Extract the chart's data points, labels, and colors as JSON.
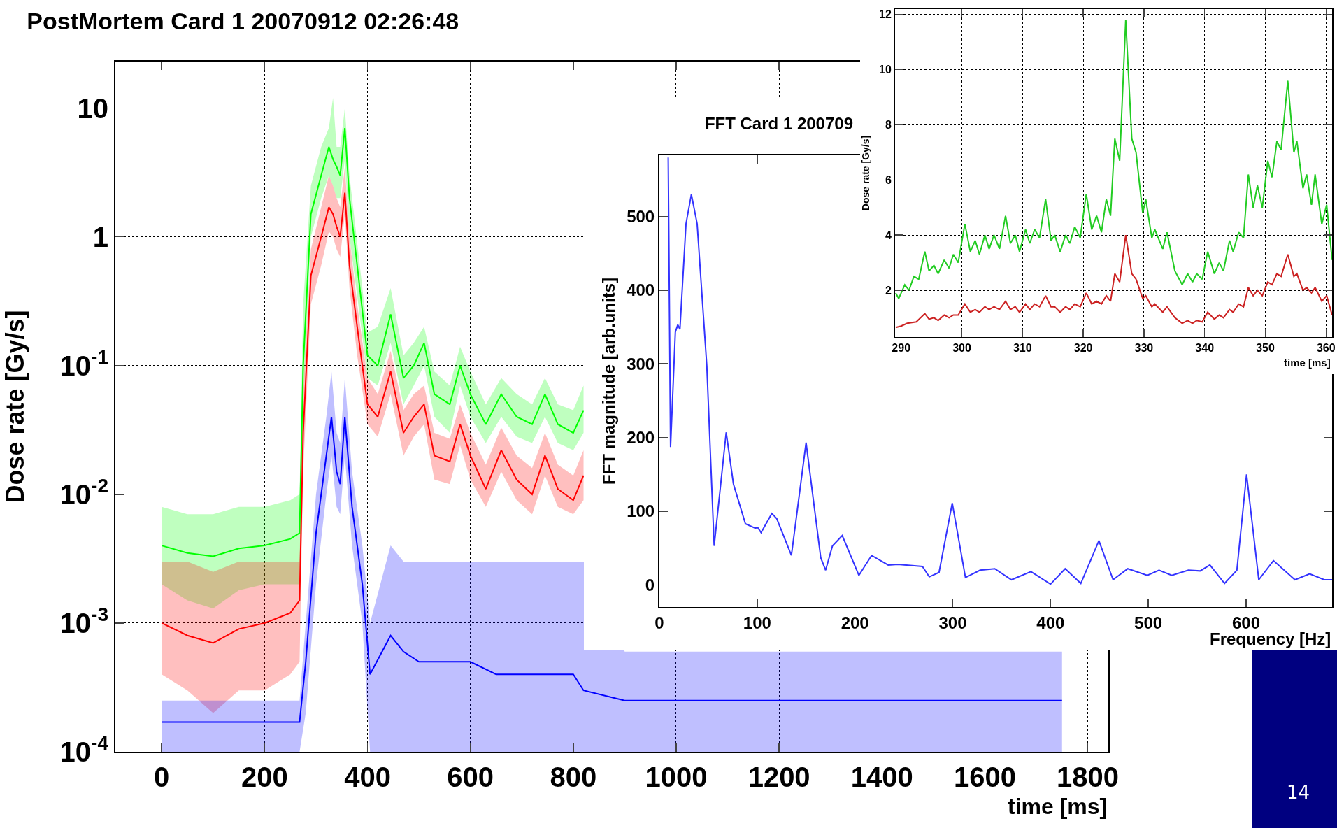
{
  "chart_data": [
    {
      "type": "line",
      "title": "PostMortem Card 1 20070912 02:26:48",
      "xlabel": "time [ms]",
      "ylabel": "Dose rate [Gy/s]",
      "log": true,
      "grid": true,
      "xlim": [
        -90,
        1840
      ],
      "ylim": [
        0.0001,
        23
      ],
      "xticks": [
        0,
        200,
        400,
        600,
        800,
        1000,
        1200,
        1400,
        1600,
        1800
      ],
      "yticks": [
        {
          "value": 0.0001,
          "label": "10$^{-4}$"
        },
        {
          "value": 0.001,
          "label": "10$^{-3}$"
        },
        {
          "value": 0.01,
          "label": "10$^{-2}$"
        },
        {
          "value": 0.1,
          "label": "10$^{-1}$"
        },
        1,
        10
      ],
      "annotations": [
        "14"
      ],
      "series": [
        {
          "color": "#00ff00",
          "x": [
            0,
            50,
            100,
            150,
            200,
            250,
            268,
            275,
            290,
            310,
            325,
            333,
            340,
            347,
            356,
            365,
            380,
            400,
            420,
            445,
            470,
            490,
            510,
            530,
            560,
            580,
            600,
            630,
            660,
            690,
            720,
            745,
            770,
            800,
            820
          ],
          "values": [
            0.004,
            0.0035,
            0.0033,
            0.0038,
            0.004,
            0.0045,
            0.005,
            0.1,
            1.5,
            3,
            5,
            4,
            3.5,
            3,
            7,
            2,
            0.6,
            0.12,
            0.1,
            0.25,
            0.08,
            0.1,
            0.15,
            0.06,
            0.05,
            0.1,
            0.06,
            0.035,
            0.06,
            0.04,
            0.035,
            0.06,
            0.035,
            0.03,
            0.045
          ],
          "lower": [
            0.002,
            0.0015,
            0.0013,
            0.0018,
            0.002,
            0.002,
            0.002,
            0.05,
            1,
            2,
            3,
            2.5,
            2,
            2,
            4,
            1,
            0.35,
            0.08,
            0.07,
            0.15,
            0.05,
            0.07,
            0.1,
            0.04,
            0.03,
            0.07,
            0.04,
            0.025,
            0.04,
            0.028,
            0.025,
            0.04,
            0.025,
            0.022,
            0.03
          ],
          "upper": [
            0.008,
            0.007,
            0.007,
            0.008,
            0.008,
            0.009,
            0.01,
            0.3,
            2.5,
            5,
            7,
            12,
            5,
            5,
            10,
            3,
            0.9,
            0.18,
            0.2,
            0.4,
            0.12,
            0.15,
            0.2,
            0.09,
            0.07,
            0.14,
            0.09,
            0.05,
            0.08,
            0.06,
            0.05,
            0.08,
            0.05,
            0.045,
            0.07
          ]
        },
        {
          "color": "#ff0000",
          "x": [
            0,
            50,
            100,
            150,
            200,
            250,
            268,
            275,
            290,
            310,
            325,
            333,
            340,
            347,
            356,
            365,
            380,
            400,
            420,
            445,
            470,
            490,
            510,
            530,
            560,
            580,
            600,
            630,
            660,
            690,
            720,
            745,
            770,
            800,
            820
          ],
          "values": [
            0.001,
            0.0008,
            0.0007,
            0.0009,
            0.001,
            0.0012,
            0.0015,
            0.03,
            0.5,
            1,
            1.7,
            1.5,
            1.2,
            1,
            2.2,
            0.6,
            0.2,
            0.05,
            0.04,
            0.09,
            0.03,
            0.04,
            0.05,
            0.02,
            0.018,
            0.035,
            0.02,
            0.011,
            0.022,
            0.013,
            0.01,
            0.02,
            0.011,
            0.009,
            0.014
          ],
          "lower": [
            0.0004,
            0.0003,
            0.0002,
            0.0003,
            0.0003,
            0.0004,
            0.0005,
            0.015,
            0.3,
            0.6,
            1.1,
            1,
            0.8,
            0.7,
            1.5,
            0.4,
            0.12,
            0.035,
            0.028,
            0.06,
            0.02,
            0.028,
            0.035,
            0.013,
            0.012,
            0.024,
            0.013,
            0.008,
            0.015,
            0.009,
            0.007,
            0.014,
            0.008,
            0.007,
            0.009
          ],
          "upper": [
            0.003,
            0.003,
            0.0025,
            0.003,
            0.003,
            0.003,
            0.003,
            0.06,
            0.8,
            1.7,
            3,
            2.5,
            2,
            1.7,
            3.5,
            1,
            0.3,
            0.08,
            0.06,
            0.13,
            0.045,
            0.06,
            0.07,
            0.03,
            0.027,
            0.05,
            0.03,
            0.017,
            0.033,
            0.02,
            0.016,
            0.03,
            0.017,
            0.014,
            0.022
          ]
        },
        {
          "color": "#0000ff",
          "x": [
            0,
            50,
            100,
            150,
            200,
            250,
            268,
            280,
            300,
            320,
            330,
            340,
            347,
            356,
            370,
            390,
            405,
            445,
            470,
            500,
            550,
            600,
            650,
            700,
            750,
            800,
            820,
            900,
            1000,
            1100,
            1200,
            1300,
            1400,
            1500,
            1600,
            1700,
            1750
          ],
          "values": [
            0.00017,
            0.00017,
            0.00017,
            0.00017,
            0.00017,
            0.00017,
            0.00017,
            0.0005,
            0.005,
            0.02,
            0.04,
            0.015,
            0.012,
            0.04,
            0.008,
            0.002,
            0.0004,
            0.0008,
            0.0006,
            0.0005,
            0.0005,
            0.0005,
            0.0004,
            0.0004,
            0.0004,
            0.0004,
            0.0003,
            0.00025,
            0.00025,
            0.00025,
            0.00025,
            0.00025,
            0.00025,
            0.00025,
            0.00025,
            0.00025,
            0.00025
          ],
          "lower": [
            0.0001,
            0.0001,
            0.0001,
            0.0001,
            0.0001,
            0.0001,
            0.0001,
            0.0002,
            0.002,
            0.01,
            0.02,
            0.008,
            0.007,
            0.02,
            0.004,
            0.001,
            0.0001,
            0.0001,
            0.0001,
            0.0001,
            0.0001,
            0.0001,
            0.0001,
            0.0001,
            0.0001,
            0.0001,
            0.0001,
            0.0001,
            0.0001,
            0.0001,
            0.0001,
            0.0001,
            0.0001,
            0.0001,
            0.0001,
            0.0001,
            0.0001
          ],
          "upper": [
            0.00025,
            0.00025,
            0.00025,
            0.00025,
            0.00025,
            0.00025,
            0.00025,
            0.001,
            0.01,
            0.04,
            0.09,
            0.03,
            0.025,
            0.08,
            0.015,
            0.004,
            0.001,
            0.004,
            0.003,
            0.003,
            0.003,
            0.003,
            0.003,
            0.003,
            0.003,
            0.003,
            0.003,
            0.0006,
            0.0006,
            0.0006,
            0.0006,
            0.0006,
            0.0006,
            0.0006,
            0.0006,
            0.0006,
            0.0006
          ]
        }
      ]
    },
    {
      "type": "line",
      "title": "FFT Card 1 200709",
      "xlabel": "Frequency [Hz]",
      "ylabel": "FFT magnitude [arb.units]",
      "xlim": [
        0,
        688
      ],
      "ylim": [
        -30,
        583
      ],
      "xticks": [
        0,
        100,
        200,
        300,
        400,
        500,
        600
      ],
      "yticks": [
        0,
        100,
        200,
        300,
        400,
        500
      ],
      "series": [
        {
          "color": "#3333ff",
          "x": [
            9,
            11.4,
            16.3,
            18.8,
            21,
            27.2,
            32.7,
            38.6,
            48.5,
            56,
            68.3,
            75.7,
            88,
            98,
            100.5,
            104,
            115,
            120,
            135,
            150,
            165,
            170,
            177,
            187,
            204,
            217,
            234,
            244,
            269,
            276,
            286,
            299.5,
            313,
            328,
            343,
            360,
            380,
            400,
            415,
            431,
            449.5,
            464,
            479,
            499,
            511,
            524,
            541,
            553,
            563,
            578,
            590.6,
            600.5,
            613,
            628,
            650,
            665,
            680,
            688
          ],
          "values": [
            580,
            187,
            343,
            353,
            347,
            490,
            530,
            490,
            297,
            53,
            207,
            137,
            83,
            77,
            78,
            71,
            97,
            90,
            40,
            193,
            37,
            20,
            53,
            67,
            13,
            40,
            27,
            28,
            25,
            11,
            17,
            111,
            10,
            20,
            22,
            7,
            18,
            1,
            22,
            2,
            60,
            7,
            22,
            13,
            20,
            13,
            20,
            19,
            27,
            2,
            20,
            150,
            7,
            33,
            7,
            15,
            7,
            7
          ]
        }
      ]
    },
    {
      "type": "line",
      "xlabel": "time [ms]",
      "ylabel": "Dose rate [Gy/s]",
      "grid": true,
      "xlim": [
        289,
        361
      ],
      "ylim": [
        0.3,
        12.2
      ],
      "xticks": [
        290,
        300,
        310,
        320,
        330,
        340,
        350,
        360
      ],
      "yticks": [
        2,
        4,
        6,
        8,
        10,
        12
      ],
      "series": [
        {
          "color": "#22cc22",
          "x": [
            289.1,
            289.6,
            290.6,
            291.3,
            292.1,
            292.9,
            293.9,
            294.6,
            295.4,
            296.1,
            297.1,
            297.9,
            298.6,
            299.4,
            300.5,
            301.4,
            302.2,
            302.9,
            303.8,
            304.5,
            305.3,
            306.2,
            307.2,
            308,
            308.8,
            309.5,
            310.5,
            311.2,
            312,
            312.8,
            313.8,
            314.7,
            315.3,
            316.2,
            317.1,
            317.8,
            318.6,
            319.5,
            320.5,
            321.4,
            322.2,
            323,
            323.8,
            324.5,
            325.2,
            326,
            327,
            328,
            328.7,
            329.8,
            330.3,
            331.3,
            331.8,
            333.1,
            333.8,
            335.1,
            336.3,
            337.2,
            338,
            338.7,
            339.6,
            340.5,
            341.6,
            342.4,
            343.1,
            344.1,
            344.7,
            345.6,
            346.4,
            347.2,
            348,
            348.7,
            349.5,
            350.4,
            351.1,
            351.9,
            352.6,
            353.7,
            354.7,
            355.2,
            356.2,
            356.8,
            357.6,
            358.2,
            359.3,
            360.1,
            361
          ],
          "values": [
            1.9,
            1.7,
            2.2,
            2,
            2.5,
            2.4,
            3.4,
            2.7,
            2.9,
            2.6,
            3.1,
            2.8,
            3.3,
            3,
            4.4,
            3.4,
            3.8,
            3.3,
            4,
            3.5,
            4,
            3.5,
            4.7,
            3.7,
            4,
            3.4,
            4.2,
            3.7,
            4.2,
            3.9,
            5.3,
            3.8,
            4,
            3.4,
            4,
            3.7,
            4.3,
            3.9,
            5.5,
            4.2,
            4.7,
            4.1,
            5.3,
            4.7,
            7.5,
            6.7,
            11.8,
            7.5,
            7,
            4.8,
            5.3,
            3.9,
            4.2,
            3.5,
            4.1,
            2.7,
            2.2,
            2.6,
            2.3,
            2.6,
            2.4,
            3.4,
            2.6,
            3,
            2.7,
            3.8,
            3.4,
            4.1,
            3.9,
            6.2,
            5,
            5.8,
            5,
            6.7,
            6.1,
            7.4,
            7.1,
            9.6,
            7,
            7.4,
            5.7,
            6.2,
            5.1,
            6.2,
            4.4,
            5.1,
            3.1
          ]
        },
        {
          "color": "#cc2222",
          "x": [
            289.1,
            290,
            291,
            292.5,
            293.9,
            294.6,
            295.4,
            296.1,
            297.1,
            297.9,
            298.6,
            299.4,
            300.5,
            301.4,
            302.2,
            302.9,
            303.8,
            304.5,
            305.3,
            306.2,
            307.2,
            308,
            308.8,
            309.5,
            310.5,
            311.2,
            312,
            312.8,
            313.8,
            314.7,
            315.3,
            316.2,
            317.1,
            317.8,
            318.6,
            319.5,
            320.5,
            321.4,
            322.2,
            323,
            323.8,
            324.5,
            325.2,
            326,
            327,
            328,
            328.7,
            329.8,
            330.3,
            331.3,
            331.8,
            333.1,
            333.8,
            335.1,
            336.3,
            337.2,
            338,
            338.7,
            339.6,
            340.5,
            341.6,
            342.4,
            343.1,
            344.1,
            344.7,
            345.6,
            346.4,
            347.2,
            348,
            348.7,
            349.5,
            350.4,
            351.1,
            351.9,
            352.6,
            353.7,
            354.7,
            355.2,
            356.2,
            356.8,
            357.6,
            358.2,
            359.3,
            360.1,
            361
          ],
          "values": [
            0.65,
            0.7,
            0.8,
            0.85,
            1.15,
            0.95,
            1,
            0.9,
            1.1,
            1,
            1.1,
            1.1,
            1.5,
            1.2,
            1.3,
            1.2,
            1.4,
            1.3,
            1.4,
            1.3,
            1.6,
            1.3,
            1.4,
            1.2,
            1.5,
            1.3,
            1.5,
            1.4,
            1.8,
            1.4,
            1.4,
            1.2,
            1.4,
            1.3,
            1.5,
            1.4,
            1.9,
            1.5,
            1.6,
            1.5,
            1.8,
            1.6,
            2.6,
            2.3,
            4,
            2.6,
            2.4,
            1.7,
            1.8,
            1.4,
            1.5,
            1.2,
            1.4,
            1,
            0.8,
            0.9,
            0.8,
            0.9,
            0.85,
            1.2,
            0.95,
            1.1,
            1,
            1.3,
            1.2,
            1.5,
            1.4,
            2.1,
            1.8,
            2,
            1.8,
            2.3,
            2.2,
            2.6,
            2.5,
            3.3,
            2.5,
            2.6,
            2,
            2.1,
            1.9,
            2.1,
            1.6,
            1.8,
            1.1
          ]
        }
      ]
    }
  ]
}
